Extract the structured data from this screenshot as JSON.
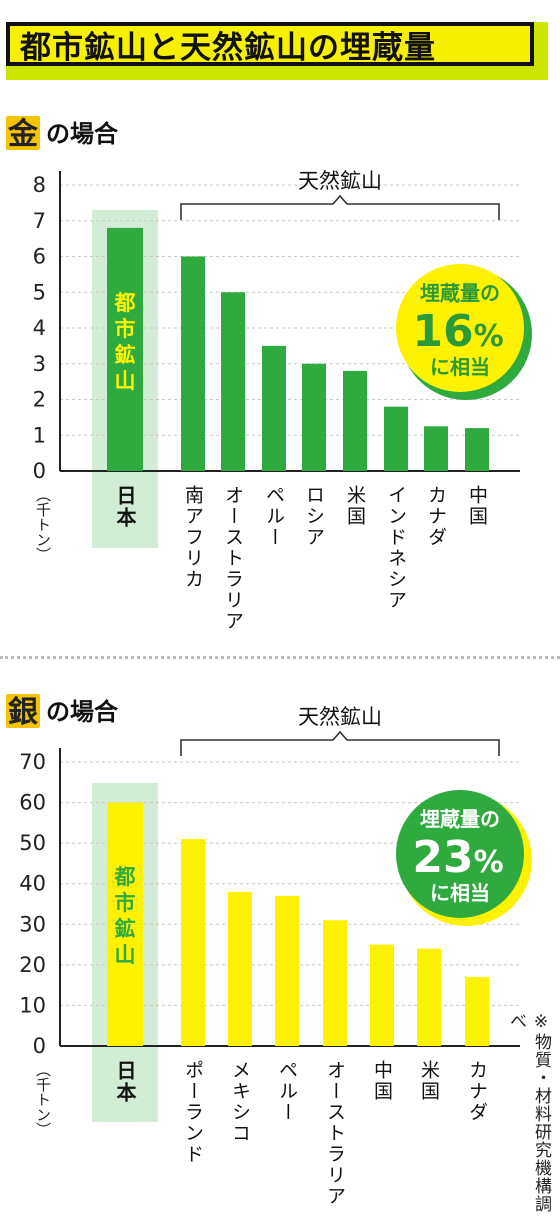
{
  "title": "都市鉱山と天然鉱山の埋蔵量",
  "note": "※物質・材料研究機構調べ",
  "colors": {
    "gold_bar": "#2eaa3e",
    "silver_bar": "#fff200",
    "highlight_bg": "#d3ecd6",
    "badge_yellow": "#fff200",
    "badge_green": "#2eaa3e"
  },
  "chart_data": [
    {
      "type": "bar",
      "panel": "gold",
      "title_icon_char": "金",
      "title_rest": "の場合",
      "unit_label": "（千トン）",
      "group_label": "天然鉱山",
      "ylim": [
        0,
        8
      ],
      "yticks": [
        "0",
        "1",
        "2",
        "3",
        "4",
        "5",
        "6",
        "7",
        "8"
      ],
      "highlight_label": "都市鉱山",
      "categories": [
        "日本",
        "南アフリカ",
        "オーストラリア",
        "ペルー",
        "ロシア",
        "米国",
        "インドネシア",
        "カナダ",
        "中国"
      ],
      "values": [
        6.8,
        6.0,
        5.0,
        3.5,
        3.0,
        2.8,
        1.8,
        1.25,
        1.2
      ],
      "badge": {
        "line1": "埋蔵量の",
        "percent": "16",
        "percent_sign": "%",
        "line3": "に相当"
      },
      "grid": true
    },
    {
      "type": "bar",
      "panel": "silver",
      "title_icon_char": "銀",
      "title_rest": "の場合",
      "unit_label": "（千トン）",
      "group_label": "天然鉱山",
      "ylim": [
        0,
        70
      ],
      "yticks": [
        "0",
        "10",
        "20",
        "30",
        "40",
        "50",
        "60",
        "70"
      ],
      "highlight_label": "都市鉱山",
      "categories": [
        "日本",
        "ポーランド",
        "メキシコ",
        "ペルー",
        "オーストラリア",
        "中国",
        "米国",
        "カナダ"
      ],
      "values": [
        60,
        51,
        38,
        37,
        31,
        25,
        24,
        17
      ],
      "badge": {
        "line1": "埋蔵量の",
        "percent": "23",
        "percent_sign": "%",
        "line3": "に相当"
      },
      "grid": true
    }
  ]
}
